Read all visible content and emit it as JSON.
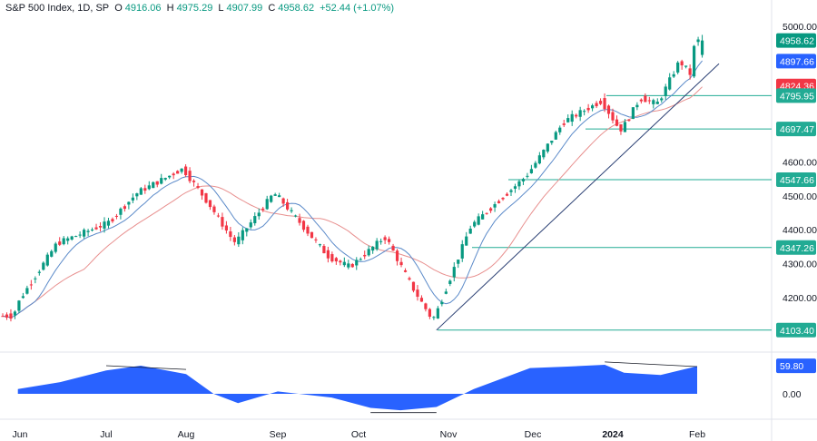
{
  "header": {
    "symbol": "S&P 500 Index, 1D, SP",
    "o_label": "O",
    "o_value": "4916.06",
    "h_label": "H",
    "h_value": "4975.29",
    "l_label": "L",
    "l_value": "4907.99",
    "c_label": "C",
    "c_value": "4958.62",
    "change": "+52.44 (+1.07%)"
  },
  "colors": {
    "up": "#089981",
    "down": "#f23645",
    "ma_fast": "#5b8ac9",
    "ma_slow": "#e8908f",
    "level": "#22ab94",
    "trend": "#2a3f73",
    "osc": "#2962ff",
    "tag_close": "#089981",
    "tag_blue": "#2962ff",
    "tag_red": "#f23645"
  },
  "chart_data": [
    {
      "type": "line",
      "title": "S&P 500 Index, 1D, SP",
      "price_axis_ticks": [
        5000,
        4600,
        4500,
        4400,
        4300,
        4200
      ],
      "price_axis_tick_labels": [
        "5000.00",
        "4600.00",
        "4500.00",
        "4400.00",
        "4300.00",
        "4200.00"
      ],
      "time_axis_labels": [
        "Jun",
        "Jul",
        "Aug",
        "Sep",
        "Oct",
        "Nov",
        "Dec",
        "2024",
        "Feb"
      ],
      "price_range": [
        4060,
        5030
      ],
      "x": [
        "May 29",
        "Jun 1",
        "Jun 15",
        "Jul 3",
        "Jul 14",
        "Jul 31",
        "Aug 10",
        "Aug 18",
        "Sep 1",
        "Sep 21",
        "Sep 29",
        "Oct 11",
        "Oct 20",
        "Oct 27",
        "Nov 10",
        "Nov 30",
        "Dec 14",
        "Dec 28",
        "Jan 5",
        "Jan 12",
        "Jan 18",
        "Jan 26",
        "Jan 31",
        "Feb 1"
      ],
      "series": [
        {
          "values": [
            4145,
            4180,
            4360,
            4420,
            4510,
            4580,
            4470,
            4360,
            4510,
            4320,
            4290,
            4380,
            4230,
            4130,
            4410,
            4560,
            4720,
            4780,
            4690,
            4790,
            4770,
            4900,
            4845,
            4958
          ]
        }
      ],
      "levels": [
        {
          "price": 4795.95,
          "label": "4795.95"
        },
        {
          "price": 4697.47,
          "label": "4697.47"
        },
        {
          "price": 4547.66,
          "label": "4547.66"
        },
        {
          "price": 4347.26,
          "label": "4347.26"
        },
        {
          "price": 4103.4,
          "label": "4103.40"
        }
      ],
      "price_tags": [
        {
          "label": "4958.62",
          "price": 4958.62,
          "color": "tag_close"
        },
        {
          "label": "4897.66",
          "price": 4897.66,
          "color": "tag_blue"
        },
        {
          "label": "4824.36",
          "price": 4824.36,
          "color": "tag_red"
        }
      ],
      "trendline": {
        "from": {
          "x": "Oct 27",
          "price": 4103.4
        },
        "to": {
          "x": "Feb 1",
          "price": 4890
        }
      }
    },
    {
      "type": "area",
      "title": "",
      "axis_ticks": [
        "0.00"
      ],
      "current_value": "59.80",
      "range": [
        -45,
        60
      ],
      "x": [
        "May 29",
        "Jun 15",
        "Jul 1",
        "Jul 14",
        "Aug 1",
        "Aug 10",
        "Aug 18",
        "Sep 1",
        "Sep 21",
        "Oct 5",
        "Oct 15",
        "Oct 27",
        "Nov 10",
        "Nov 30",
        "Dec 14",
        "Dec 28",
        "Jan 5",
        "Jan 18",
        "Jan 31",
        "Feb 1"
      ],
      "values": [
        10,
        25,
        50,
        60,
        42,
        0,
        -20,
        5,
        -8,
        -30,
        -35,
        -28,
        10,
        55,
        58,
        62,
        45,
        40,
        59,
        59.8
      ],
      "divergence_lines": [
        {
          "from": {
            "x": "Jul 1",
            "value": 60
          },
          "to": {
            "x": "Aug 1",
            "value": 52
          }
        },
        {
          "from": {
            "x": "Oct 5",
            "value": -40
          },
          "to": {
            "x": "Oct 27",
            "value": -40
          }
        },
        {
          "from": {
            "x": "Dec 28",
            "value": 68
          },
          "to": {
            "x": "Feb 1",
            "value": 58
          }
        }
      ]
    }
  ]
}
